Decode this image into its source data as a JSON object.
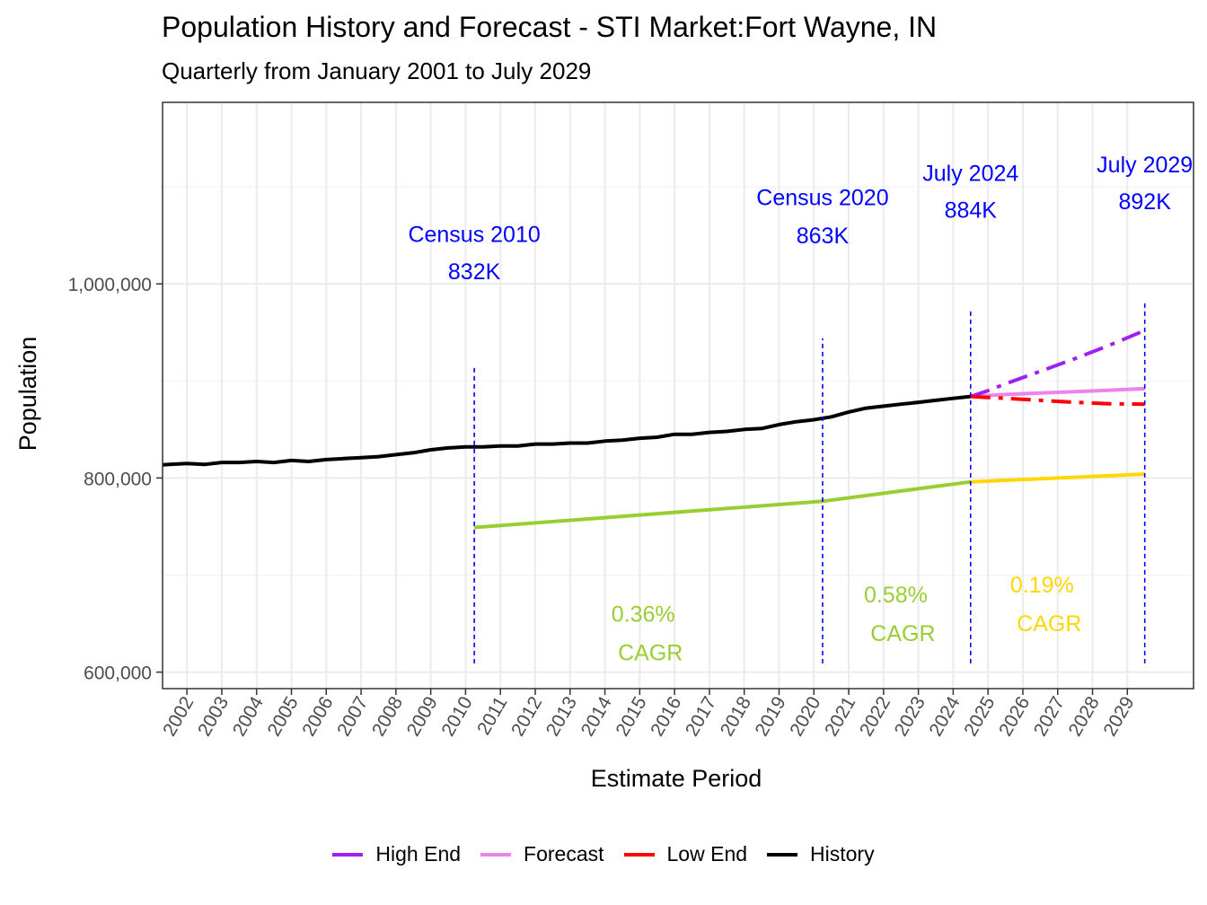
{
  "chart_data": {
    "type": "line",
    "title": "Population History and Forecast - STI Market:Fort Wayne, IN",
    "subtitle": "Quarterly from January 2001 to July 2029",
    "xlabel": "Estimate Period",
    "ylabel": "Population",
    "xlim": [
      2001.3,
      2030.9
    ],
    "ylim": [
      583000,
      1187000
    ],
    "y_ticks": [
      600000,
      800000,
      1000000
    ],
    "y_tick_labels": [
      "600,000",
      "800,000",
      "1,000,000"
    ],
    "x_ticks": [
      2002,
      2003,
      2004,
      2005,
      2006,
      2007,
      2008,
      2009,
      2010,
      2011,
      2012,
      2013,
      2014,
      2015,
      2016,
      2017,
      2018,
      2019,
      2020,
      2021,
      2022,
      2023,
      2024,
      2025,
      2026,
      2027,
      2028,
      2029
    ],
    "x_tick_labels": [
      "2002",
      "2003",
      "2004",
      "2005",
      "2006",
      "2007",
      "2008",
      "2009",
      "2010",
      "2011",
      "2012",
      "2013",
      "2014",
      "2015",
      "2016",
      "2017",
      "2018",
      "2019",
      "2020",
      "2021",
      "2022",
      "2023",
      "2024",
      "2025",
      "2026",
      "2027",
      "2028",
      "2029"
    ],
    "series": [
      {
        "name": "History",
        "color": "#000000",
        "dash": "solid",
        "x": [
          2001.0,
          2001.5,
          2002.0,
          2002.5,
          2003.0,
          2003.5,
          2004.0,
          2004.5,
          2005.0,
          2005.5,
          2006.0,
          2006.5,
          2007.0,
          2007.5,
          2008.0,
          2008.5,
          2009.0,
          2009.5,
          2010.0,
          2010.5,
          2011.0,
          2011.5,
          2012.0,
          2012.5,
          2013.0,
          2013.5,
          2014.0,
          2014.5,
          2015.0,
          2015.5,
          2016.0,
          2016.5,
          2017.0,
          2017.5,
          2018.0,
          2018.5,
          2019.0,
          2019.5,
          2020.0,
          2020.5,
          2021.0,
          2021.5,
          2022.0,
          2022.5,
          2023.0,
          2023.5,
          2024.0,
          2024.5
        ],
        "values": [
          813000,
          814000,
          815000,
          814000,
          816000,
          816000,
          817000,
          816000,
          818000,
          817000,
          819000,
          820000,
          821000,
          822000,
          824000,
          826000,
          829000,
          831000,
          832000,
          832000,
          833000,
          833000,
          835000,
          835000,
          836000,
          836000,
          838000,
          839000,
          841000,
          842000,
          845000,
          845000,
          847000,
          848000,
          850000,
          851000,
          855000,
          858000,
          860000,
          863000,
          868000,
          872000,
          874000,
          876000,
          878000,
          880000,
          882000,
          884000
        ]
      },
      {
        "name": "Forecast",
        "color": "#ee82ee",
        "dash": "solid",
        "x": [
          2024.5,
          2025.5,
          2026.5,
          2027.5,
          2028.5,
          2029.5
        ],
        "values": [
          884000,
          886000,
          887500,
          889000,
          890500,
          892000
        ]
      },
      {
        "name": "High End",
        "color": "#a020f0",
        "dash": "dashdot",
        "x": [
          2024.5,
          2025.0,
          2025.5,
          2026.5,
          2027.5,
          2028.5,
          2029.5
        ],
        "values": [
          884000,
          890000,
          897000,
          910000,
          923000,
          937000,
          952000
        ]
      },
      {
        "name": "Low End",
        "color": "#ff0000",
        "dash": "dashdot",
        "x": [
          2024.5,
          2025.0,
          2025.5,
          2026.5,
          2027.5,
          2028.5,
          2029.5
        ],
        "values": [
          884000,
          883000,
          882000,
          880000,
          878000,
          876500,
          876000
        ]
      },
      {
        "name": "CAGR 2010-2020",
        "color": "#9acd32",
        "dash": "solid",
        "in_legend": false,
        "x": [
          2010.25,
          2020.25
        ],
        "values": [
          749000,
          776000
        ]
      },
      {
        "name": "CAGR 2020-2024",
        "color": "#9acd32",
        "dash": "solid",
        "in_legend": false,
        "x": [
          2020.25,
          2024.5
        ],
        "values": [
          776000,
          796000
        ]
      },
      {
        "name": "CAGR 2024-2029",
        "color": "#ffd700",
        "dash": "solid",
        "in_legend": false,
        "x": [
          2024.5,
          2029.5
        ],
        "values": [
          796000,
          804000
        ]
      }
    ],
    "vlines": [
      {
        "x": 2010.25,
        "y_top": 915000,
        "label": "Census 2010",
        "value_label": "832K",
        "label_y": 1043000,
        "value_y": 1005000
      },
      {
        "x": 2020.25,
        "y_top": 944000,
        "label": "Census 2020",
        "value_label": "863K",
        "label_y": 1081000,
        "value_y": 1042000
      },
      {
        "x": 2024.5,
        "y_top": 972000,
        "label": "July 2024",
        "value_label": "884K",
        "label_y": 1106000,
        "value_y": 1068000
      },
      {
        "x": 2029.5,
        "y_top": 982000,
        "label": "July 2029",
        "value_label": "892K",
        "label_y": 1115000,
        "value_y": 1077000
      }
    ],
    "vline_bottom": 609000,
    "vline_color": "#0000ff",
    "cagr_labels": [
      {
        "rate": "0.36%",
        "word": "CAGR",
        "color": "#9acd32",
        "x": 2015.1,
        "rate_y": 652000,
        "word_y": 612000
      },
      {
        "rate": "0.58%",
        "word": "CAGR",
        "color": "#9acd32",
        "x": 2022.35,
        "rate_y": 672000,
        "word_y": 632000
      },
      {
        "rate": "0.19%",
        "word": "CAGR",
        "color": "#ffd700",
        "x": 2026.55,
        "rate_y": 682000,
        "word_y": 642000
      }
    ],
    "legend": [
      {
        "label": "High End",
        "color": "#a020f0"
      },
      {
        "label": "Forecast",
        "color": "#ee82ee"
      },
      {
        "label": "Low End",
        "color": "#ff0000"
      },
      {
        "label": "History",
        "color": "#000000"
      }
    ]
  }
}
